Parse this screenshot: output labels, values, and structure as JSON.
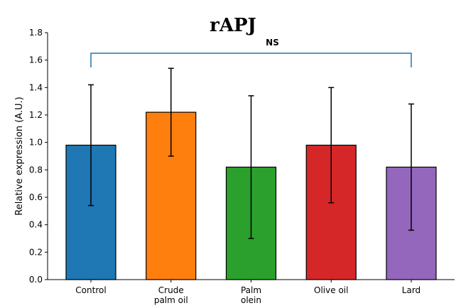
{
  "chart_data": {
    "type": "bar",
    "title": "rAPJ",
    "xlabel": "",
    "ylabel": "Relative expression (A.U.)",
    "ylim": [
      0,
      1.8
    ],
    "yticks": [
      "0.0",
      "0.2",
      "0.4",
      "0.6",
      "0.8",
      "1.0",
      "1.2",
      "1.4",
      "1.6",
      "1.8"
    ],
    "categories": [
      {
        "lines": [
          "Control"
        ]
      },
      {
        "lines": [
          "Crude",
          "palm oil"
        ]
      },
      {
        "lines": [
          "Palm",
          "olein"
        ]
      },
      {
        "lines": [
          "Olive oil"
        ]
      },
      {
        "lines": [
          "Lard"
        ]
      }
    ],
    "values": [
      0.98,
      1.22,
      0.82,
      0.98,
      0.82
    ],
    "errors": [
      0.44,
      0.32,
      0.52,
      0.42,
      0.46
    ],
    "colors": [
      "#1f77b4",
      "#ff7f0e",
      "#2ca02c",
      "#d62728",
      "#9467bd"
    ],
    "significance": {
      "label": "NS",
      "from_index": 0,
      "to_index": 4,
      "color": "#1f77b4"
    },
    "grid": false,
    "legend": "none"
  }
}
